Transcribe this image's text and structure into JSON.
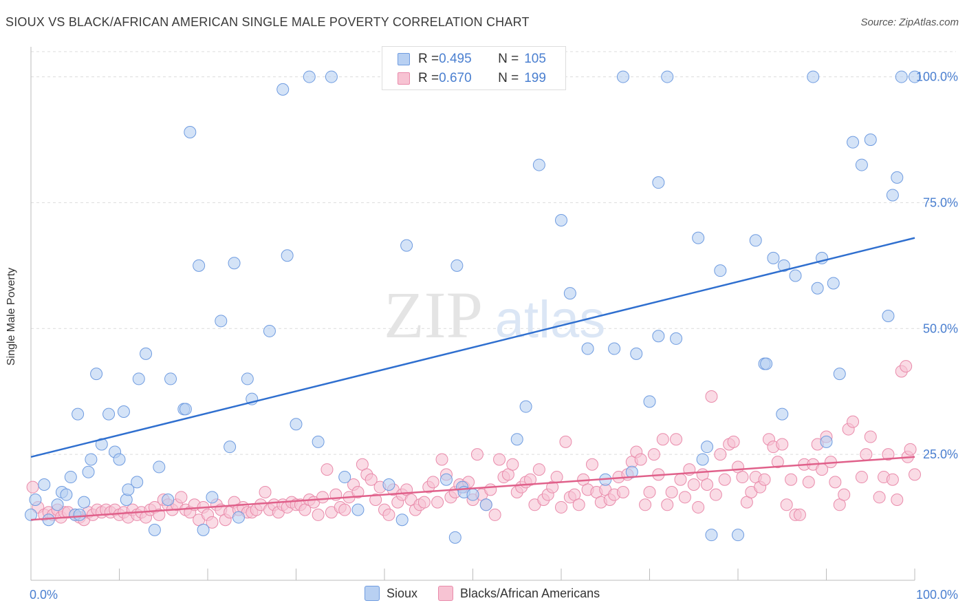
{
  "title": "SIOUX VS BLACK/AFRICAN AMERICAN SINGLE MALE POVERTY CORRELATION CHART",
  "source": "Source: ZipAtlas.com",
  "watermark": {
    "zip": "ZIP",
    "atlas": "atlas"
  },
  "colors": {
    "sioux_fill": "#b8d0f2",
    "sioux_stroke": "#6e9be0",
    "sioux_line": "#2f6fcf",
    "black_fill": "#f7c3d3",
    "black_stroke": "#e98aaa",
    "black_line": "#e0608a",
    "tick_label": "#4a7fd0",
    "grid": "#dcdcdc"
  },
  "legend": {
    "rows": [
      {
        "r_label": "R = ",
        "r_value": "0.495",
        "n_label": "N = ",
        "n_value": "105"
      },
      {
        "r_label": "R = ",
        "r_value": "0.670",
        "n_label": "N = ",
        "n_value": "199"
      }
    ]
  },
  "bottom_legend": {
    "sioux": "Sioux",
    "black": "Blacks/African Americans"
  },
  "chart_data": {
    "type": "scatter",
    "title": "SIOUX VS BLACK/AFRICAN AMERICAN SINGLE MALE POVERTY CORRELATION CHART",
    "xlabel": "",
    "ylabel": "Single Male Poverty",
    "xlim": [
      0,
      100
    ],
    "ylim": [
      0,
      105
    ],
    "x_tick_labels": [
      "0.0%",
      "100.0%"
    ],
    "y_ticks": [
      25,
      50,
      75,
      100
    ],
    "y_tick_labels": [
      "25.0%",
      "50.0%",
      "75.0%",
      "100.0%"
    ],
    "grid": "horizontal dashed",
    "legend_position": "top-center",
    "series": [
      {
        "name": "Sioux",
        "R": 0.495,
        "N": 105,
        "trend": {
          "x": [
            0,
            100
          ],
          "y": [
            24.5,
            68.0
          ]
        },
        "points": [
          [
            0,
            13
          ],
          [
            0.5,
            16
          ],
          [
            1.5,
            19
          ],
          [
            2,
            12
          ],
          [
            3,
            15
          ],
          [
            3.5,
            17.5
          ],
          [
            4,
            17
          ],
          [
            4.5,
            20.5
          ],
          [
            5,
            13
          ],
          [
            5.5,
            13
          ],
          [
            6,
            15.5
          ],
          [
            5.3,
            33
          ],
          [
            6.5,
            21.5
          ],
          [
            6.8,
            24
          ],
          [
            8,
            27
          ],
          [
            8.8,
            33
          ],
          [
            7.4,
            41
          ],
          [
            9.5,
            25.5
          ],
          [
            10,
            24
          ],
          [
            10.5,
            33.5
          ],
          [
            10.8,
            16
          ],
          [
            11,
            18
          ],
          [
            12,
            19.5
          ],
          [
            12.2,
            40
          ],
          [
            13,
            45
          ],
          [
            14,
            10
          ],
          [
            14.5,
            22.5
          ],
          [
            15.5,
            16
          ],
          [
            15.8,
            40
          ],
          [
            17.3,
            34
          ],
          [
            17.5,
            34
          ],
          [
            18,
            89
          ],
          [
            19,
            62.5
          ],
          [
            19.5,
            10
          ],
          [
            20.5,
            16.5
          ],
          [
            21.5,
            51.5
          ],
          [
            22.5,
            26.5
          ],
          [
            23,
            63
          ],
          [
            23.5,
            12.5
          ],
          [
            24.5,
            40
          ],
          [
            25,
            36
          ],
          [
            27,
            49.5
          ],
          [
            28.5,
            97.5
          ],
          [
            29,
            64.5
          ],
          [
            30,
            31
          ],
          [
            31.5,
            100
          ],
          [
            32.5,
            27.5
          ],
          [
            34,
            100
          ],
          [
            35.5,
            20.5
          ],
          [
            37,
            14
          ],
          [
            40.5,
            19
          ],
          [
            42,
            12
          ],
          [
            42.5,
            66.5
          ],
          [
            47,
            20
          ],
          [
            48,
            8.5
          ],
          [
            48.2,
            62.5
          ],
          [
            48.8,
            18.5
          ],
          [
            49,
            17.5
          ],
          [
            50,
            17
          ],
          [
            51.5,
            15
          ],
          [
            52.5,
            100
          ],
          [
            54.5,
            100
          ],
          [
            55,
            28
          ],
          [
            56,
            34.5
          ],
          [
            57.5,
            82.5
          ],
          [
            60,
            71.5
          ],
          [
            61,
            57
          ],
          [
            63,
            46
          ],
          [
            65,
            20
          ],
          [
            66,
            46
          ],
          [
            67,
            100
          ],
          [
            68,
            21.5
          ],
          [
            68.5,
            45
          ],
          [
            70,
            35.5
          ],
          [
            71,
            79
          ],
          [
            71,
            48.5
          ],
          [
            72,
            100
          ],
          [
            73,
            48
          ],
          [
            75.5,
            68
          ],
          [
            76,
            24
          ],
          [
            76.5,
            26.5
          ],
          [
            77,
            9
          ],
          [
            78,
            61.5
          ],
          [
            80,
            9
          ],
          [
            82,
            67.5
          ],
          [
            83,
            43
          ],
          [
            83.2,
            43
          ],
          [
            84,
            64
          ],
          [
            85,
            33
          ],
          [
            85.2,
            62.5
          ],
          [
            86.5,
            60.5
          ],
          [
            88.5,
            100
          ],
          [
            89,
            58
          ],
          [
            89.5,
            64
          ],
          [
            90,
            27.5
          ],
          [
            90.8,
            59
          ],
          [
            91.5,
            41
          ],
          [
            93,
            87
          ],
          [
            94,
            82.5
          ],
          [
            95,
            87.5
          ],
          [
            97,
            52.5
          ],
          [
            97.5,
            76.5
          ],
          [
            98,
            80
          ],
          [
            98.5,
            100
          ],
          [
            100,
            100
          ]
        ]
      },
      {
        "name": "Blacks/African Americans",
        "R": 0.67,
        "N": 199,
        "trend": {
          "x": [
            0,
            100
          ],
          "y": [
            12.0,
            24.5
          ]
        },
        "points": [
          [
            0.2,
            18.5
          ],
          [
            0.8,
            14.5
          ],
          [
            1.5,
            13
          ],
          [
            2,
            13.5
          ],
          [
            2.5,
            13
          ],
          [
            3,
            14
          ],
          [
            3.4,
            12.5
          ],
          [
            3.8,
            13.5
          ],
          [
            4.2,
            13.5
          ],
          [
            5,
            13
          ],
          [
            5.5,
            12.5
          ],
          [
            6,
            12
          ],
          [
            6.5,
            13.5
          ],
          [
            7,
            13
          ],
          [
            7.5,
            14
          ],
          [
            8,
            13.5
          ],
          [
            8.5,
            14
          ],
          [
            9,
            13.5
          ],
          [
            9.5,
            14
          ],
          [
            10,
            13
          ],
          [
            10.5,
            13.5
          ],
          [
            11,
            12.5
          ],
          [
            11.5,
            14
          ],
          [
            12,
            13
          ],
          [
            12.5,
            13.5
          ],
          [
            13,
            12.5
          ],
          [
            13.5,
            14
          ],
          [
            14,
            14.5
          ],
          [
            14.5,
            13
          ],
          [
            15,
            16
          ],
          [
            15.5,
            15
          ],
          [
            16,
            14
          ],
          [
            16.5,
            15
          ],
          [
            17,
            16.5
          ],
          [
            17.5,
            14
          ],
          [
            18,
            13.5
          ],
          [
            18.5,
            15
          ],
          [
            19,
            12
          ],
          [
            19.5,
            14.5
          ],
          [
            20,
            13
          ],
          [
            20.5,
            11.5
          ],
          [
            21,
            15
          ],
          [
            21.5,
            14
          ],
          [
            22,
            12
          ],
          [
            22.5,
            13.5
          ],
          [
            23,
            15.5
          ],
          [
            23.5,
            14
          ],
          [
            24,
            14.5
          ],
          [
            24.5,
            13.5
          ],
          [
            25,
            13.5
          ],
          [
            25.5,
            14
          ],
          [
            26,
            15
          ],
          [
            26.5,
            17.5
          ],
          [
            27,
            14
          ],
          [
            27.5,
            15
          ],
          [
            28,
            13.5
          ],
          [
            28.5,
            15
          ],
          [
            29,
            14.5
          ],
          [
            29.5,
            15.5
          ],
          [
            30,
            15
          ],
          [
            30.5,
            15
          ],
          [
            31,
            14
          ],
          [
            31.5,
            16
          ],
          [
            32,
            15.5
          ],
          [
            32.5,
            13
          ],
          [
            33,
            16.5
          ],
          [
            33.5,
            22
          ],
          [
            34,
            13.5
          ],
          [
            34.5,
            17
          ],
          [
            35,
            14.5
          ],
          [
            35.5,
            14
          ],
          [
            36,
            16.5
          ],
          [
            36.5,
            19
          ],
          [
            37,
            17.5
          ],
          [
            37.5,
            23
          ],
          [
            38,
            21
          ],
          [
            38.5,
            20
          ],
          [
            39,
            16
          ],
          [
            39.5,
            18.5
          ],
          [
            40,
            14
          ],
          [
            40.5,
            13
          ],
          [
            41,
            18
          ],
          [
            41.5,
            15.5
          ],
          [
            42,
            17
          ],
          [
            42.5,
            18
          ],
          [
            43,
            16
          ],
          [
            43.5,
            14
          ],
          [
            44,
            15
          ],
          [
            44.5,
            15.5
          ],
          [
            45,
            18.5
          ],
          [
            45.5,
            19.5
          ],
          [
            46,
            15.5
          ],
          [
            46.5,
            24
          ],
          [
            47,
            21
          ],
          [
            47.5,
            16.5
          ],
          [
            48,
            17.5
          ],
          [
            48.5,
            19
          ],
          [
            49,
            18.5
          ],
          [
            49.5,
            19.5
          ],
          [
            50,
            16
          ],
          [
            50.5,
            25
          ],
          [
            51,
            17
          ],
          [
            51.5,
            15
          ],
          [
            52,
            18
          ],
          [
            52.5,
            13
          ],
          [
            53,
            24
          ],
          [
            53.5,
            20.5
          ],
          [
            54,
            21
          ],
          [
            54.5,
            23
          ],
          [
            55,
            17.5
          ],
          [
            55.5,
            18.5
          ],
          [
            56,
            19.5
          ],
          [
            56.5,
            20
          ],
          [
            57,
            15
          ],
          [
            57.5,
            22
          ],
          [
            58,
            16
          ],
          [
            58.5,
            17
          ],
          [
            59,
            18.5
          ],
          [
            59.5,
            20.5
          ],
          [
            60,
            14.5
          ],
          [
            60.5,
            27.5
          ],
          [
            61,
            16.5
          ],
          [
            61.5,
            17
          ],
          [
            62,
            15
          ],
          [
            62.5,
            20
          ],
          [
            63,
            18
          ],
          [
            63.5,
            23
          ],
          [
            64,
            17.5
          ],
          [
            64.5,
            15.5
          ],
          [
            65,
            18
          ],
          [
            65.5,
            16
          ],
          [
            66,
            17
          ],
          [
            66.5,
            20.5
          ],
          [
            67,
            17.5
          ],
          [
            67.5,
            21
          ],
          [
            68,
            23.5
          ],
          [
            68.5,
            25.5
          ],
          [
            69,
            24
          ],
          [
            69.5,
            15
          ],
          [
            70,
            17.5
          ],
          [
            70.5,
            25
          ],
          [
            71,
            21
          ],
          [
            71.5,
            28
          ],
          [
            72,
            15
          ],
          [
            72.5,
            17.5
          ],
          [
            73,
            28
          ],
          [
            73.5,
            20
          ],
          [
            74,
            16.5
          ],
          [
            74.5,
            22
          ],
          [
            75,
            19
          ],
          [
            75.5,
            14.5
          ],
          [
            76,
            21
          ],
          [
            76.5,
            19
          ],
          [
            77,
            36.5
          ],
          [
            77.5,
            17
          ],
          [
            78,
            25
          ],
          [
            78.5,
            20
          ],
          [
            79,
            27
          ],
          [
            79.5,
            27.5
          ],
          [
            80,
            22.5
          ],
          [
            80.5,
            20.5
          ],
          [
            81,
            15.5
          ],
          [
            81.5,
            17.5
          ],
          [
            82,
            20.5
          ],
          [
            82.5,
            18.5
          ],
          [
            83,
            20
          ],
          [
            83.5,
            28
          ],
          [
            84,
            26.5
          ],
          [
            84.5,
            23.5
          ],
          [
            85,
            27
          ],
          [
            85.5,
            15
          ],
          [
            86,
            20
          ],
          [
            86.5,
            13
          ],
          [
            87,
            13
          ],
          [
            87.5,
            23
          ],
          [
            88,
            19.5
          ],
          [
            88.5,
            23
          ],
          [
            89,
            27
          ],
          [
            89.5,
            22
          ],
          [
            90,
            28.5
          ],
          [
            90.5,
            23.5
          ],
          [
            91,
            19.5
          ],
          [
            91.5,
            15
          ],
          [
            92,
            17
          ],
          [
            92.5,
            30
          ],
          [
            93,
            31.5
          ],
          [
            94,
            20.5
          ],
          [
            94.5,
            25
          ],
          [
            95,
            28.5
          ],
          [
            96,
            16.5
          ],
          [
            96.5,
            20.5
          ],
          [
            97,
            25
          ],
          [
            97.5,
            20
          ],
          [
            98,
            16
          ],
          [
            98.5,
            41.5
          ],
          [
            99,
            42.5
          ],
          [
            99.2,
            24.5
          ],
          [
            99.5,
            26
          ],
          [
            100,
            21
          ]
        ]
      }
    ]
  }
}
